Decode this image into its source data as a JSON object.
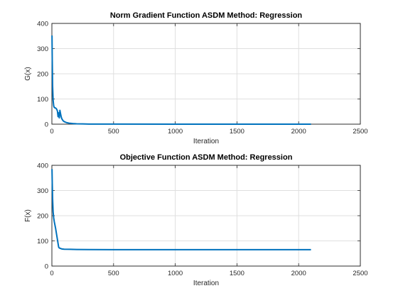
{
  "chart_data": [
    {
      "type": "line",
      "title": "Norm Gradient Function ASDM Method: Regression",
      "xlabel": "Iteration",
      "ylabel": "G(x)",
      "xlim": [
        0,
        2500
      ],
      "ylim": [
        0,
        400
      ],
      "xticks": [
        0,
        500,
        1000,
        1500,
        2000,
        2500
      ],
      "yticks": [
        0,
        100,
        200,
        300,
        400
      ],
      "grid": true,
      "color": "#0072bd",
      "series": [
        {
          "x": [
            1,
            3,
            6,
            10,
            15,
            20,
            25,
            30,
            35,
            40,
            45,
            50,
            55,
            60,
            65,
            70,
            75,
            80,
            90,
            100,
            120,
            140,
            170,
            200,
            250,
            300,
            400,
            500,
            1000,
            1500,
            2100
          ],
          "values": [
            352,
            255,
            150,
            95,
            72,
            66,
            65,
            64,
            62,
            58,
            52,
            30,
            45,
            25,
            55,
            42,
            30,
            22,
            14,
            10,
            6,
            4,
            2.5,
            1.5,
            1,
            0.5,
            0.3,
            0.2,
            0.1,
            0.1,
            0.1
          ]
        }
      ]
    },
    {
      "type": "line",
      "title": "Objective Function ASDM Method: Regression",
      "xlabel": "Iteration",
      "ylabel": "F(x)",
      "xlim": [
        0,
        2500
      ],
      "ylim": [
        0,
        400
      ],
      "xticks": [
        0,
        500,
        1000,
        1500,
        2000,
        2500
      ],
      "yticks": [
        0,
        100,
        200,
        300,
        400
      ],
      "grid": true,
      "color": "#0072bd",
      "series": [
        {
          "x": [
            1,
            3,
            6,
            10,
            15,
            20,
            30,
            40,
            50,
            55,
            60,
            70,
            80,
            100,
            150,
            200,
            300,
            500,
            1000,
            1500,
            2100
          ],
          "values": [
            385,
            330,
            265,
            215,
            190,
            175,
            150,
            120,
            90,
            75,
            72,
            70,
            68,
            67,
            66.5,
            66,
            65.5,
            65.3,
            65.2,
            65.2,
            65.2
          ]
        }
      ]
    }
  ]
}
